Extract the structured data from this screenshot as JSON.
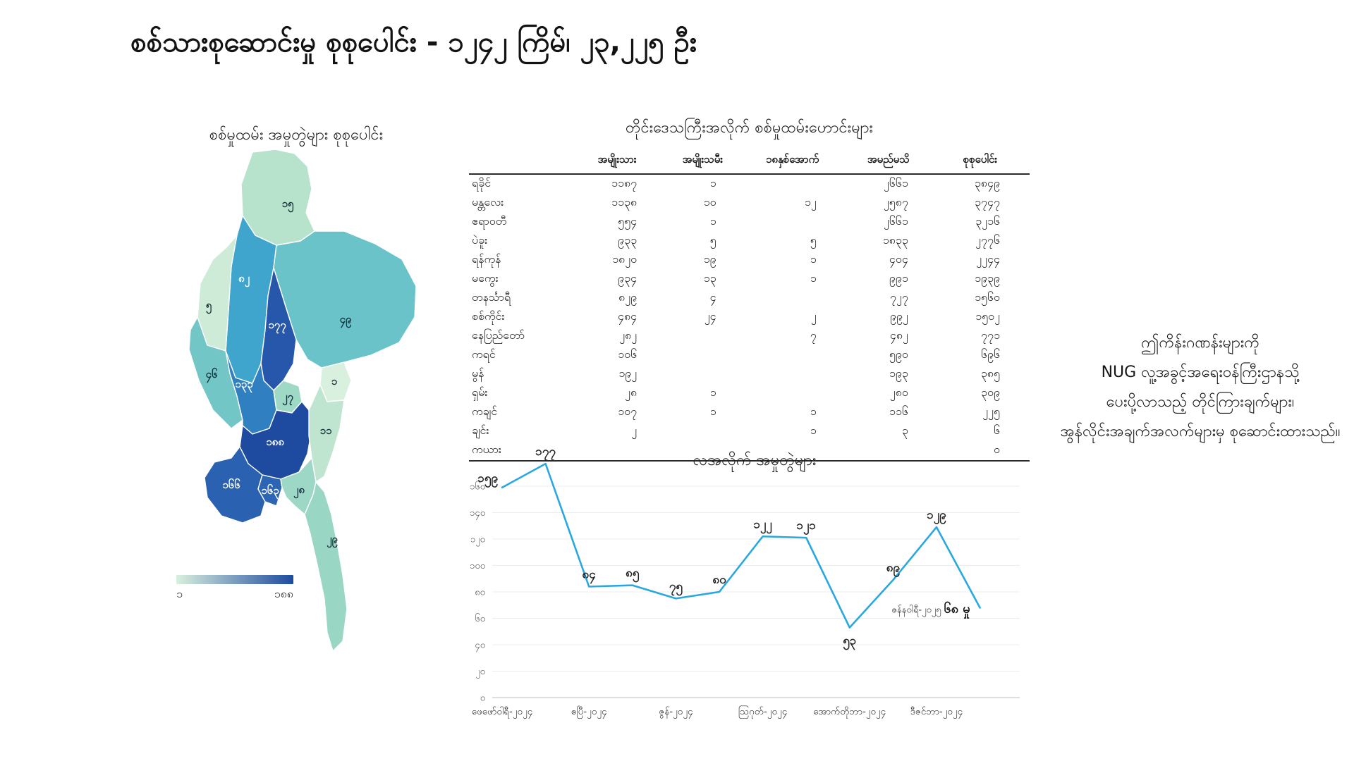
{
  "page_title": "စစ်သားစုဆောင်းမှု စုစုပေါင်း - ၁၂၄၂ ကြိမ်၊ ၂၃,၂၂၅ ဦး",
  "map": {
    "title": "စစ်မှုထမ်း အမှုတွဲများ စုစုပေါင်း",
    "legend": {
      "min_label": "၁",
      "max_label": "၁၈၈",
      "min_color": "#d9f0de",
      "max_color": "#1e4aa0"
    },
    "regions": [
      {
        "id": "kachin",
        "label": "၁၅",
        "value": 15,
        "color": "#b7e2cc",
        "text_color": "#14323c"
      },
      {
        "id": "sagaing",
        "label": "၈၂",
        "value": 82,
        "color": "#3fa5cd",
        "text_color": "#ffffff"
      },
      {
        "id": "chin",
        "label": "၅",
        "value": 5,
        "color": "#cdebd6",
        "text_color": "#14323c"
      },
      {
        "id": "shan",
        "label": "၄၉",
        "value": 49,
        "color": "#6ac3c9",
        "text_color": "#14323c"
      },
      {
        "id": "mandalay",
        "label": "၁၇၇",
        "value": 177,
        "color": "#2757ab",
        "text_color": "#ffffff"
      },
      {
        "id": "rakhine",
        "label": "၄၆",
        "value": 46,
        "color": "#72c6c6",
        "text_color": "#14323c"
      },
      {
        "id": "magway",
        "label": "၁၃၃",
        "value": 133,
        "color": "#2f7fc1",
        "text_color": "#ffffff"
      },
      {
        "id": "naypyidaw",
        "label": "၂၇",
        "value": 27,
        "color": "#9ed9c5",
        "text_color": "#14323c"
      },
      {
        "id": "kayah",
        "label": "၁",
        "value": 1,
        "color": "#d9f0de",
        "text_color": "#14323c"
      },
      {
        "id": "bago",
        "label": "၁၈၈",
        "value": 188,
        "color": "#1e4aa0",
        "text_color": "#ffffff"
      },
      {
        "id": "ayeyarwady",
        "label": "၁၆၆",
        "value": 166,
        "color": "#2a61b0",
        "text_color": "#ffffff"
      },
      {
        "id": "yangon",
        "label": "၁၆၃",
        "value": 163,
        "color": "#2b65b3",
        "text_color": "#ffffff"
      },
      {
        "id": "kayin",
        "label": "၁၁",
        "value": 11,
        "color": "#bfe5d0",
        "text_color": "#14323c"
      },
      {
        "id": "mon",
        "label": "၂၈",
        "value": 28,
        "color": "#9cd8c5",
        "text_color": "#14323c"
      },
      {
        "id": "tanintharyi",
        "label": "၂၉",
        "value": 29,
        "color": "#99d7c4",
        "text_color": "#14323c"
      }
    ]
  },
  "table": {
    "title": "တိုင်းဒေသကြီးအလိုက် စစ်မှုထမ်းဟောင်းများ",
    "headers": [
      "အမျိုးသား",
      "အမျိုးသမီး",
      "၁၈နှစ်အောက်",
      "အမည်မသိ",
      "စုစုပေါင်း"
    ],
    "rows": [
      [
        "ရခိုင်",
        "၁၁၈၇",
        "၁",
        "",
        "၂၆၆၁",
        "၃၈၄၉"
      ],
      [
        "မန္တလေး",
        "၁၁၃၈",
        "၁၀",
        "၁၂",
        "၂၅၈၇",
        "၃၇၄၇"
      ],
      [
        "ဧရာဝတီ",
        "၅၅၄",
        "၁",
        "",
        "၂၆၆၁",
        "၃၂၁၆"
      ],
      [
        "ပဲခူး",
        "၉၃၃",
        "၅",
        "၅",
        "၁၈၃၃",
        "၂၇၇၆"
      ],
      [
        "ရန်ကုန်",
        "၁၈၂၀",
        "၁၉",
        "၁",
        "၄၀၄",
        "၂၂၄၄"
      ],
      [
        "မကွေး",
        "၉၃၄",
        "၁၃",
        "၁",
        "၉၉၁",
        "၁၉၃၉"
      ],
      [
        "တနင်္သာရီ",
        "၈၂၉",
        "၄",
        "",
        "၇၂၇",
        "၁၅၆၀"
      ],
      [
        "စစ်ကိုင်း",
        "၄၈၄",
        "၂၄",
        "၂",
        "၉၉၂",
        "၁၅၀၂"
      ],
      [
        "နေပြည်တော်",
        "၂၈၂",
        "",
        "၇",
        "၄၈၂",
        "၇၇၁"
      ],
      [
        "ကရင်",
        "၁၀၆",
        "",
        "",
        "၅၉၀",
        "၆၉၆"
      ],
      [
        "မွန်",
        "၁၉၂",
        "",
        "",
        "၁၉၃",
        "၃၈၅"
      ],
      [
        "ရှမ်း",
        "၂၈",
        "၁",
        "",
        "၂၈၀",
        "၃၀၉"
      ],
      [
        "ကချင်",
        "၁၀၇",
        "၁",
        "၁",
        "၁၁၆",
        "၂၂၅"
      ],
      [
        "ချင်း",
        "၂",
        "",
        "၁",
        "၃",
        "၆"
      ],
      [
        "ကယား",
        "",
        "",
        "",
        "",
        "၀"
      ]
    ]
  },
  "line_chart": {
    "title": "လအလိုက် အမှုတွဲများ",
    "line_color": "#29a8e0",
    "values": [
      159,
      177,
      84,
      85,
      75,
      80,
      122,
      121,
      53,
      89,
      129,
      68
    ],
    "value_labels": [
      "၁၅၉",
      "၁၇၇",
      "၈၄",
      "၈၅",
      "၇၅",
      "၈၀",
      "၁၂၂",
      "၁၂၁",
      "၅၃",
      "၈၉",
      "၁၂၉",
      "၆၈"
    ],
    "ytick_labels": [
      "၀",
      "၂၀",
      "၄၀",
      "၆၀",
      "၈၀",
      "၁၀၀",
      "၁၂၀",
      "၁၄၀",
      "၁၆၀"
    ],
    "xtick_labels": [
      "ဖေဖော်ဝါရီ-၂၀၂၄",
      "ဧပြီ-၂၀၂၄",
      "ဇွန်-၂၀၂၄",
      "ဩဂုတ်-၂၀၂၄",
      "အောက်တိုဘာ-၂၀၂၄",
      "ဒီဇင်ဘာ-၂၀၂၄"
    ],
    "annotation": {
      "month": "ဇန်နဝါရီ-၂၀၂၅",
      "value_text": "၆၈ မှု"
    }
  },
  "note_lines": [
    "ဤကိန်းဂဏန်းများကို",
    "NUG လူ့အခွင့်အရေးဝန်ကြီးဌာနသို့",
    "ပေးပို့လာသည့် တိုင်ကြားချက်များ၊",
    "အွန်လိုင်းအချက်အလက်များမှ စုဆောင်းထားသည်။"
  ],
  "chart_data": [
    {
      "type": "line",
      "title": "လအလိုက် အမှုတွဲများ",
      "x_points": 12,
      "values": [
        159,
        177,
        84,
        85,
        75,
        80,
        122,
        121,
        53,
        89,
        129,
        68
      ],
      "xtick_labels": [
        "ဖေဖော်ဝါရီ-၂၀၂၄",
        "ဧပြီ-၂၀၂၄",
        "ဇွန်-၂၀၂၄",
        "ဩဂုတ်-၂၀၂၄",
        "အောက်တိုဘာ-၂၀၂၄",
        "ဒီဇင်ဘာ-၂၀၂၄"
      ],
      "ylim": [
        0,
        160
      ],
      "grid": true,
      "annotation": "ဇန်နဝါရီ-၂၀၂၅ ၆၈ မှု"
    },
    {
      "type": "heatmap",
      "subtype": "choropleth-map",
      "title": "စစ်မှုထမ်း အမှုတွဲများ စုစုပေါင်း",
      "categories": [
        "ကချင်",
        "စစ်ကိုင်း",
        "ချင်း",
        "ရှမ်း",
        "မန္တလေး",
        "ရခိုင်",
        "မကွေး",
        "နေပြည်တော်",
        "ကယား",
        "ပဲခူး",
        "ဧရာဝတီ",
        "ရန်ကုန်",
        "ကရင်",
        "မွန်",
        "တနင်္သာရီ"
      ],
      "values": [
        15,
        82,
        5,
        49,
        177,
        46,
        133,
        27,
        1,
        188,
        166,
        163,
        11,
        28,
        29
      ],
      "legend_range_labels": [
        "၁",
        "၁၈၈"
      ]
    }
  ]
}
